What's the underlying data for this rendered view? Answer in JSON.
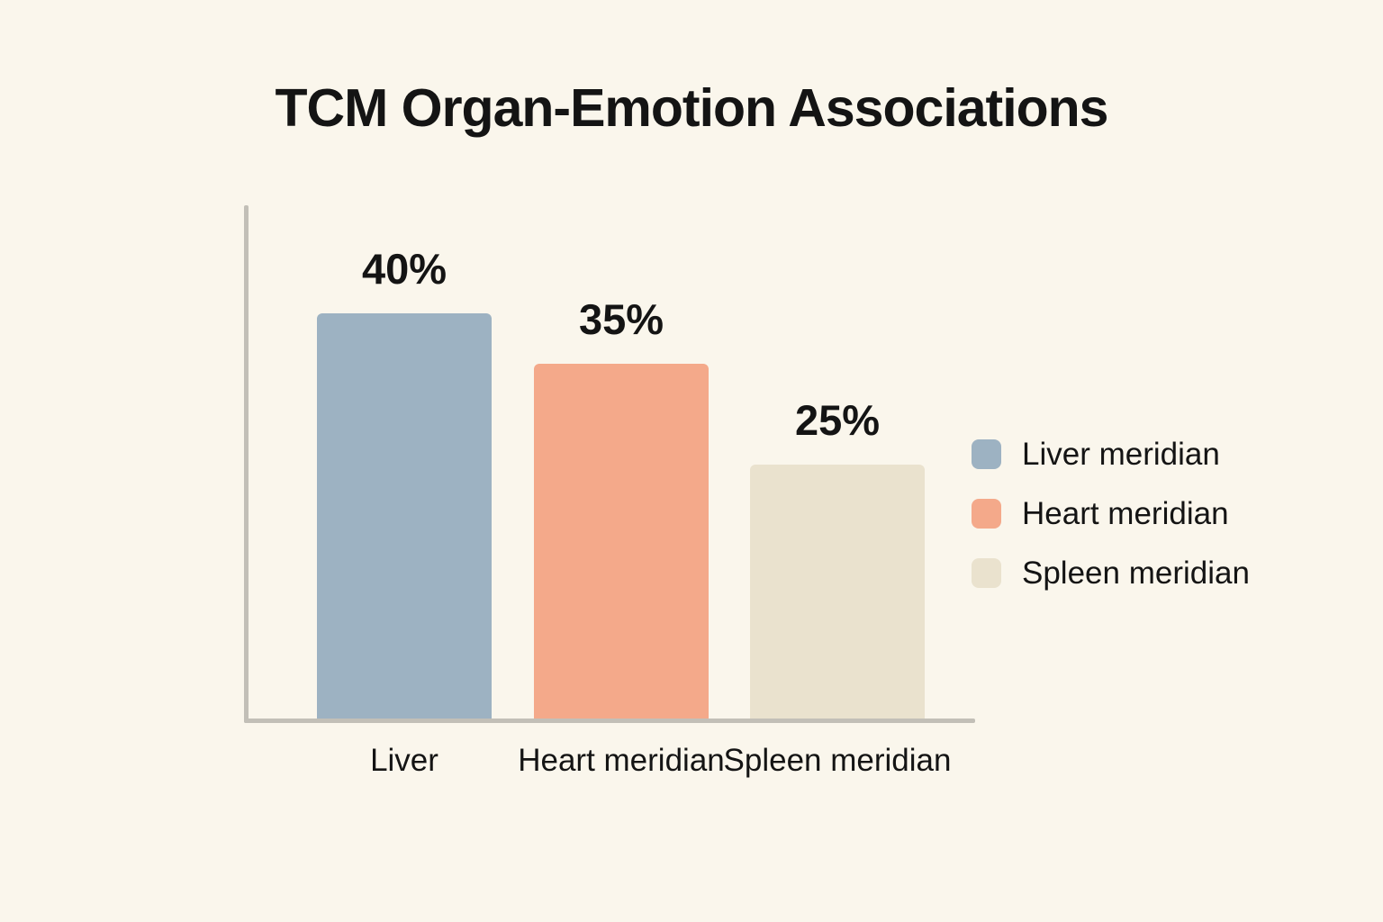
{
  "page": {
    "background": "#FAF6EC",
    "text_color": "#141414"
  },
  "title": "TCM Organ-Emotion Associations",
  "chart_data": {
    "type": "bar",
    "title": "TCM Organ-Emotion Associations",
    "categories": [
      "Liver",
      "Heart meridian",
      "Spleen meridian"
    ],
    "values": [
      40,
      35,
      25
    ],
    "value_labels": [
      "40%",
      "35%",
      "25%"
    ],
    "unit": "%",
    "xlabel": "",
    "ylabel": "",
    "ylim": [
      0,
      50
    ],
    "grid": false,
    "axis_ticks_visible": false,
    "bar_colors": [
      "#9DB2C2",
      "#F4A98A",
      "#EAE2CE"
    ],
    "axis_color": "#C2BFB7",
    "legend": {
      "position": "right",
      "entries": [
        {
          "label": "Liver meridian",
          "color": "#9DB2C2"
        },
        {
          "label": "Heart meridian",
          "color": "#F4A98A"
        },
        {
          "label": "Spleen meridian",
          "color": "#EAE2CE"
        }
      ]
    }
  }
}
